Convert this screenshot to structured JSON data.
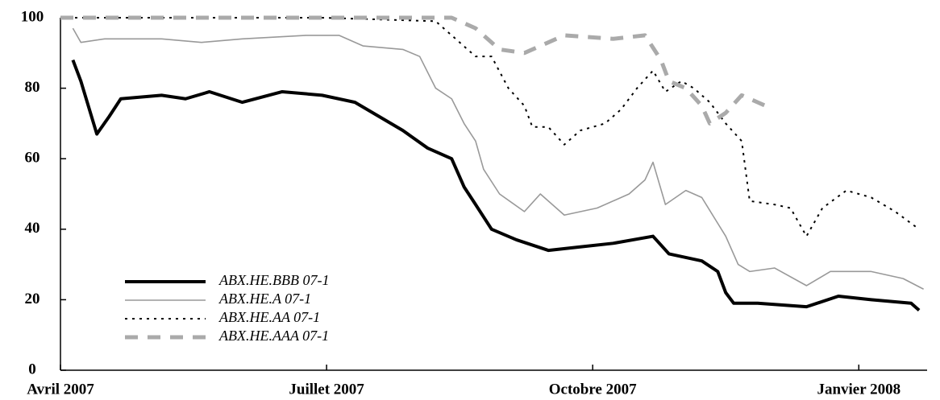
{
  "chart_data": {
    "type": "line",
    "xlim": [
      0,
      9.77
    ],
    "xticks": [
      {
        "value": 0,
        "label": "Avril 2007"
      },
      {
        "value": 3,
        "label": "Juillet 2007"
      },
      {
        "value": 6,
        "label": "Octobre 2007"
      },
      {
        "value": 9,
        "label": "Janvier 2008"
      }
    ],
    "ylim": [
      0,
      100
    ],
    "yticks": [
      0,
      20,
      40,
      60,
      80,
      100
    ],
    "legend": "lower-left",
    "series": [
      {
        "name": "ABX.HE.BBB 07-1",
        "color": "#000000",
        "width": 4,
        "dash": "none",
        "x": [
          0.14,
          0.23,
          0.41,
          0.55,
          0.68,
          1.14,
          1.41,
          1.68,
          2.05,
          2.5,
          2.95,
          3.32,
          3.59,
          3.86,
          4.14,
          4.41,
          4.55,
          4.68,
          4.86,
          5.14,
          5.5,
          5.86,
          6.23,
          6.68,
          6.86,
          7.23,
          7.41,
          7.5,
          7.59,
          7.86,
          8.41,
          8.77,
          9.14,
          9.59,
          9.68
        ],
        "values": [
          88,
          82,
          67,
          72,
          77,
          78,
          77,
          79,
          76,
          79,
          78,
          76,
          72,
          68,
          63,
          60,
          52,
          47,
          40,
          37,
          34,
          35,
          36,
          38,
          33,
          31,
          28,
          22,
          19,
          19,
          18,
          21,
          20,
          19,
          17
        ]
      },
      {
        "name": "ABX.HE.A 07-1",
        "color": "#999999",
        "width": 1.6,
        "dash": "none",
        "x": [
          0.14,
          0.23,
          0.5,
          1.14,
          1.59,
          2.05,
          2.77,
          3.14,
          3.41,
          3.86,
          4.05,
          4.23,
          4.41,
          4.55,
          4.68,
          4.77,
          4.95,
          5.23,
          5.41,
          5.68,
          6.05,
          6.41,
          6.59,
          6.68,
          6.82,
          7.05,
          7.23,
          7.5,
          7.64,
          7.77,
          8.05,
          8.41,
          8.68,
          9.14,
          9.5,
          9.73
        ],
        "values": [
          97,
          93,
          94,
          94,
          93,
          94,
          95,
          95,
          92,
          91,
          89,
          80,
          77,
          70,
          65,
          57,
          50,
          45,
          50,
          44,
          46,
          50,
          54,
          59,
          47,
          51,
          49,
          38,
          30,
          28,
          29,
          24,
          28,
          28,
          26,
          23
        ]
      },
      {
        "name": "ABX.HE.AA 07-1",
        "color": "#000000",
        "width": 2,
        "dash": "3 6",
        "x": [
          0,
          1.14,
          2.95,
          4.23,
          4.41,
          4.68,
          4.86,
          5.05,
          5.23,
          5.32,
          5.5,
          5.68,
          5.86,
          6.14,
          6.32,
          6.5,
          6.68,
          6.82,
          7.0,
          7.14,
          7.32,
          7.5,
          7.68,
          7.77,
          8.05,
          8.23,
          8.41,
          8.59,
          8.86,
          9.14,
          9.41,
          9.68
        ],
        "values": [
          100,
          100,
          100,
          99,
          95,
          89,
          89,
          80,
          75,
          69,
          69,
          64,
          68,
          70,
          74,
          80,
          85,
          79,
          82,
          80,
          76,
          70,
          65,
          48,
          47,
          46,
          38,
          46,
          51,
          49,
          45,
          40
        ]
      },
      {
        "name": "ABX.HE.AAA 07-1",
        "color": "#aaaaaa",
        "width": 5,
        "dash": "16 12",
        "x": [
          0,
          2.05,
          3.86,
          4.41,
          4.68,
          4.95,
          5.23,
          5.5,
          5.68,
          6.23,
          6.59,
          6.77,
          6.86,
          7.05,
          7.23,
          7.32,
          7.5,
          7.68,
          7.86,
          7.95
        ],
        "values": [
          100,
          100,
          100,
          100,
          97,
          91,
          90,
          93,
          95,
          94,
          95,
          88,
          82,
          80,
          75,
          70,
          73,
          78,
          76,
          75
        ]
      }
    ]
  }
}
